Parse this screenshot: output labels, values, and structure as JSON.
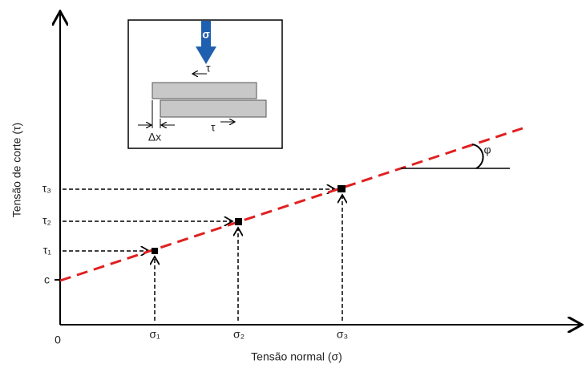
{
  "axes": {
    "x_label": "Tensão normal (σ)",
    "y_label": "Tensão de corte (τ)",
    "origin": "0"
  },
  "y_ticks": [
    "c",
    "τ₁",
    "τ₂",
    "τ₃"
  ],
  "x_ticks": [
    "σ₁",
    "σ₂",
    "σ₃"
  ],
  "angle": "φ",
  "inset": {
    "load": "σ",
    "shear_top": "τ",
    "shear_bottom": "τ",
    "displacement": "Δx"
  }
}
